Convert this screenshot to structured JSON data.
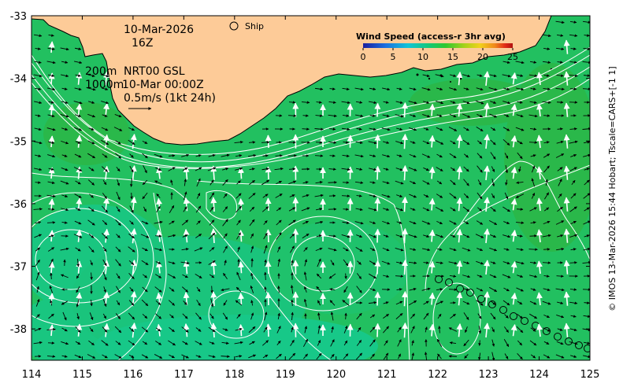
{
  "map": {
    "date_label": "10-Mar-2026",
    "time_label": "16Z",
    "ship_label": "Ship",
    "contour_legend": {
      "line1": "200m",
      "line2": "1000m",
      "product": "NRT00 GSL",
      "product_time": "10-Mar 00:00Z"
    },
    "scale_arrow_label": "0.5m/s (1kt 24h)",
    "colorbar": {
      "title": "Wind Speed (access-r 3hr avg)",
      "ticks": [
        "0",
        "5",
        "10",
        "15",
        "20",
        "25"
      ],
      "range": [
        0,
        25
      ],
      "colors": [
        "#1a1f9e",
        "#1c6fe0",
        "#10c4d8",
        "#14c870",
        "#2ec830",
        "#a8d21a",
        "#f0d21c",
        "#f08a1c",
        "#e02a18",
        "#b01010"
      ]
    },
    "credit": "© IMOS 13-Mar-2026 15:44 Hobart; Tscale=CARS+[-1 1]",
    "x_ticks": [
      "114",
      "115",
      "116",
      "117",
      "118",
      "119",
      "120",
      "121",
      "122",
      "123",
      "124",
      "125"
    ],
    "y_ticks": [
      "-33",
      "-34",
      "-35",
      "-36",
      "-37",
      "-38"
    ],
    "extent": {
      "lon": [
        114,
        125
      ],
      "lat": [
        -38.5,
        -33
      ]
    },
    "colors": {
      "ocean": "#22c060",
      "ocean_light": "#15c98a",
      "land": "#fdcb98",
      "contour": "#ffffff"
    }
  }
}
